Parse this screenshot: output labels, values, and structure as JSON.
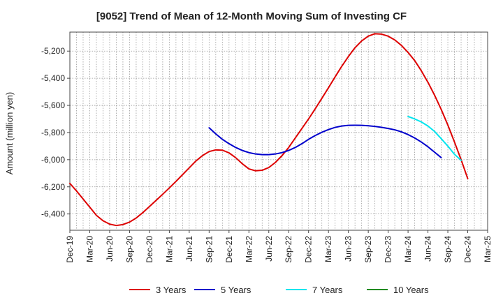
{
  "chart_data": {
    "type": "line",
    "title": "[9052]  Trend of Mean of 12-Month Moving Sum of Investing CF",
    "xlabel": "",
    "ylabel": "Amount (million yen)",
    "ylim": [
      -6520,
      -5060
    ],
    "yticks": [
      -6400,
      -6200,
      -6000,
      -5800,
      -5600,
      -5400,
      -5200
    ],
    "ytick_labels": [
      "-6,400",
      "-6,200",
      "-6,000",
      "-5,800",
      "-5,600",
      "-5,400",
      "-5,200"
    ],
    "x_start": "Dec-19",
    "x_months": 63,
    "x_tick_labels": [
      "Dec-19",
      "Mar-20",
      "Jun-20",
      "Sep-20",
      "Dec-20",
      "Mar-21",
      "Jun-21",
      "Sep-21",
      "Dec-21",
      "Mar-22",
      "Jun-22",
      "Sep-22",
      "Dec-22",
      "Mar-23",
      "Jun-23",
      "Sep-23",
      "Dec-23",
      "Mar-24",
      "Jun-24",
      "Sep-24",
      "Dec-24",
      "Mar-25"
    ],
    "grid": true,
    "legend_position": "bottom",
    "series": [
      {
        "name": "3 Years",
        "color": "#dd0000",
        "start_index": 0,
        "values": [
          -6175,
          -6230,
          -6290,
          -6350,
          -6410,
          -6450,
          -6475,
          -6485,
          -6478,
          -6460,
          -6430,
          -6390,
          -6345,
          -6300,
          -6255,
          -6208,
          -6160,
          -6110,
          -6060,
          -6010,
          -5970,
          -5940,
          -5928,
          -5930,
          -5950,
          -5985,
          -6030,
          -6068,
          -6082,
          -6078,
          -6058,
          -6020,
          -5970,
          -5910,
          -5840,
          -5770,
          -5700,
          -5625,
          -5548,
          -5470,
          -5390,
          -5312,
          -5240,
          -5175,
          -5125,
          -5090,
          -5072,
          -5075,
          -5090,
          -5118,
          -5158,
          -5210,
          -5270,
          -5345,
          -5430,
          -5525,
          -5630,
          -5745,
          -5870,
          -6000,
          -6140
        ]
      },
      {
        "name": "5 Years",
        "color": "#0000cc",
        "start_index": 21,
        "values": [
          -5765,
          -5810,
          -5850,
          -5882,
          -5910,
          -5932,
          -5948,
          -5958,
          -5963,
          -5963,
          -5958,
          -5948,
          -5932,
          -5910,
          -5882,
          -5850,
          -5822,
          -5798,
          -5778,
          -5762,
          -5752,
          -5747,
          -5746,
          -5747,
          -5750,
          -5755,
          -5762,
          -5770,
          -5780,
          -5795,
          -5815,
          -5840,
          -5870,
          -5905,
          -5945,
          -5985
        ]
      },
      {
        "name": "7 Years",
        "color": "#00e5ee",
        "start_index": 51,
        "values": [
          -5682,
          -5700,
          -5722,
          -5752,
          -5792,
          -5845,
          -5900,
          -5960,
          -6005
        ]
      },
      {
        "name": "10 Years",
        "color": "#228b22",
        "start_index": 0,
        "values": []
      }
    ]
  }
}
